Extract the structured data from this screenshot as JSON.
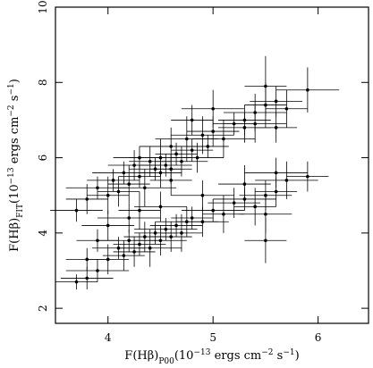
{
  "chart_data": {
    "type": "scatter",
    "xlabel": [
      "F(Hβ)",
      "P00",
      "(10",
      "−13",
      " ergs cm",
      "−2",
      " s",
      "−1",
      ")"
    ],
    "ylabel": [
      "F(Hβ)",
      "FIT",
      "(10",
      "−13",
      " ergs cm",
      "−2",
      " s",
      "−1",
      ")"
    ],
    "xlim": [
      3.5,
      6.48
    ],
    "ylim": [
      1.6,
      10
    ],
    "xticks": [
      4,
      5,
      6
    ],
    "yticks": [
      2,
      4,
      6,
      8,
      10
    ],
    "color": "#000000",
    "x": [
      3.7,
      3.8,
      3.9,
      4.0,
      4.05,
      4.1,
      4.15,
      4.2,
      4.25,
      4.3,
      4.35,
      4.4,
      4.45,
      4.5,
      4.5,
      4.55,
      4.6,
      4.6,
      4.65,
      4.7,
      4.75,
      4.8,
      4.85,
      4.9,
      4.95,
      5.0,
      5.1,
      5.2,
      5.3,
      5.4,
      5.5,
      5.6,
      5.7,
      5.9,
      5.5,
      5.3,
      5.0,
      4.8,
      4.3,
      4.6,
      5.4,
      5.6,
      3.7,
      3.8,
      3.9,
      4.0,
      4.1,
      4.15,
      4.2,
      4.25,
      4.3,
      4.35,
      4.4,
      4.45,
      4.5,
      4.55,
      4.6,
      4.65,
      4.7,
      4.75,
      4.8,
      4.9,
      5.0,
      5.1,
      5.2,
      5.3,
      5.4,
      5.5,
      5.6,
      5.7,
      5.9,
      5.5,
      5.6,
      5.5,
      4.0,
      3.9,
      4.2,
      4.3,
      4.5,
      3.8,
      4.9,
      5.3
    ],
    "y": [
      4.6,
      4.9,
      5.2,
      5.0,
      5.4,
      5.1,
      5.6,
      5.3,
      5.8,
      5.5,
      5.2,
      5.9,
      5.7,
      6.0,
      5.6,
      5.8,
      5.7,
      6.3,
      6.1,
      5.9,
      6.5,
      6.2,
      6.0,
      6.6,
      6.3,
      6.7,
      6.5,
      6.9,
      7.0,
      7.2,
      7.4,
      7.5,
      7.3,
      7.8,
      7.9,
      6.8,
      7.3,
      7.0,
      6.0,
      5.4,
      6.9,
      6.8,
      2.7,
      2.8,
      3.0,
      3.3,
      3.6,
      3.4,
      3.8,
      3.5,
      3.7,
      3.9,
      3.6,
      4.0,
      3.8,
      4.1,
      3.9,
      4.2,
      4.0,
      4.3,
      4.4,
      4.3,
      4.6,
      4.5,
      4.8,
      4.9,
      4.7,
      5.0,
      5.1,
      5.4,
      5.5,
      4.5,
      5.6,
      3.8,
      4.2,
      3.8,
      4.4,
      4.6,
      4.7,
      3.3,
      5.0,
      5.3
    ],
    "xerr": [
      0.25,
      0.2,
      0.3,
      0.2,
      0.25,
      0.2,
      0.3,
      0.2,
      0.25,
      0.2,
      0.3,
      0.2,
      0.25,
      0.3,
      0.2,
      0.25,
      0.2,
      0.3,
      0.2,
      0.25,
      0.3,
      0.2,
      0.25,
      0.3,
      0.2,
      0.25,
      0.3,
      0.2,
      0.25,
      0.3,
      0.2,
      0.25,
      0.2,
      0.3,
      0.2,
      0.25,
      0.3,
      0.2,
      0.25,
      0.2,
      0.3,
      0.2,
      0.2,
      0.25,
      0.3,
      0.2,
      0.25,
      0.2,
      0.3,
      0.2,
      0.25,
      0.2,
      0.3,
      0.2,
      0.25,
      0.3,
      0.2,
      0.25,
      0.2,
      0.3,
      0.2,
      0.25,
      0.3,
      0.2,
      0.25,
      0.3,
      0.2,
      0.25,
      0.2,
      0.3,
      0.2,
      0.25,
      0.3,
      0.2,
      0.25,
      0.2,
      0.3,
      0.2,
      0.25,
      0.2,
      0.3,
      0.25
    ],
    "yerr": [
      0.3,
      0.4,
      0.3,
      0.5,
      0.3,
      0.4,
      0.3,
      0.5,
      0.4,
      0.3,
      0.5,
      0.4,
      0.3,
      0.5,
      0.4,
      0.3,
      0.4,
      0.5,
      0.3,
      0.4,
      0.6,
      0.3,
      0.4,
      0.5,
      0.3,
      0.4,
      0.5,
      0.3,
      0.4,
      0.5,
      0.6,
      0.4,
      0.5,
      0.6,
      0.8,
      0.4,
      0.5,
      0.4,
      0.3,
      0.4,
      0.5,
      0.4,
      0.2,
      0.3,
      0.3,
      0.4,
      0.3,
      0.4,
      0.3,
      0.4,
      0.3,
      0.4,
      0.5,
      0.3,
      0.4,
      0.3,
      0.4,
      0.3,
      0.5,
      0.4,
      0.3,
      0.4,
      0.3,
      0.5,
      0.4,
      0.3,
      0.5,
      0.4,
      0.4,
      0.5,
      0.4,
      0.5,
      0.4,
      0.6,
      0.4,
      0.3,
      0.4,
      0.5,
      0.4,
      0.3,
      0.4,
      0.5
    ]
  }
}
